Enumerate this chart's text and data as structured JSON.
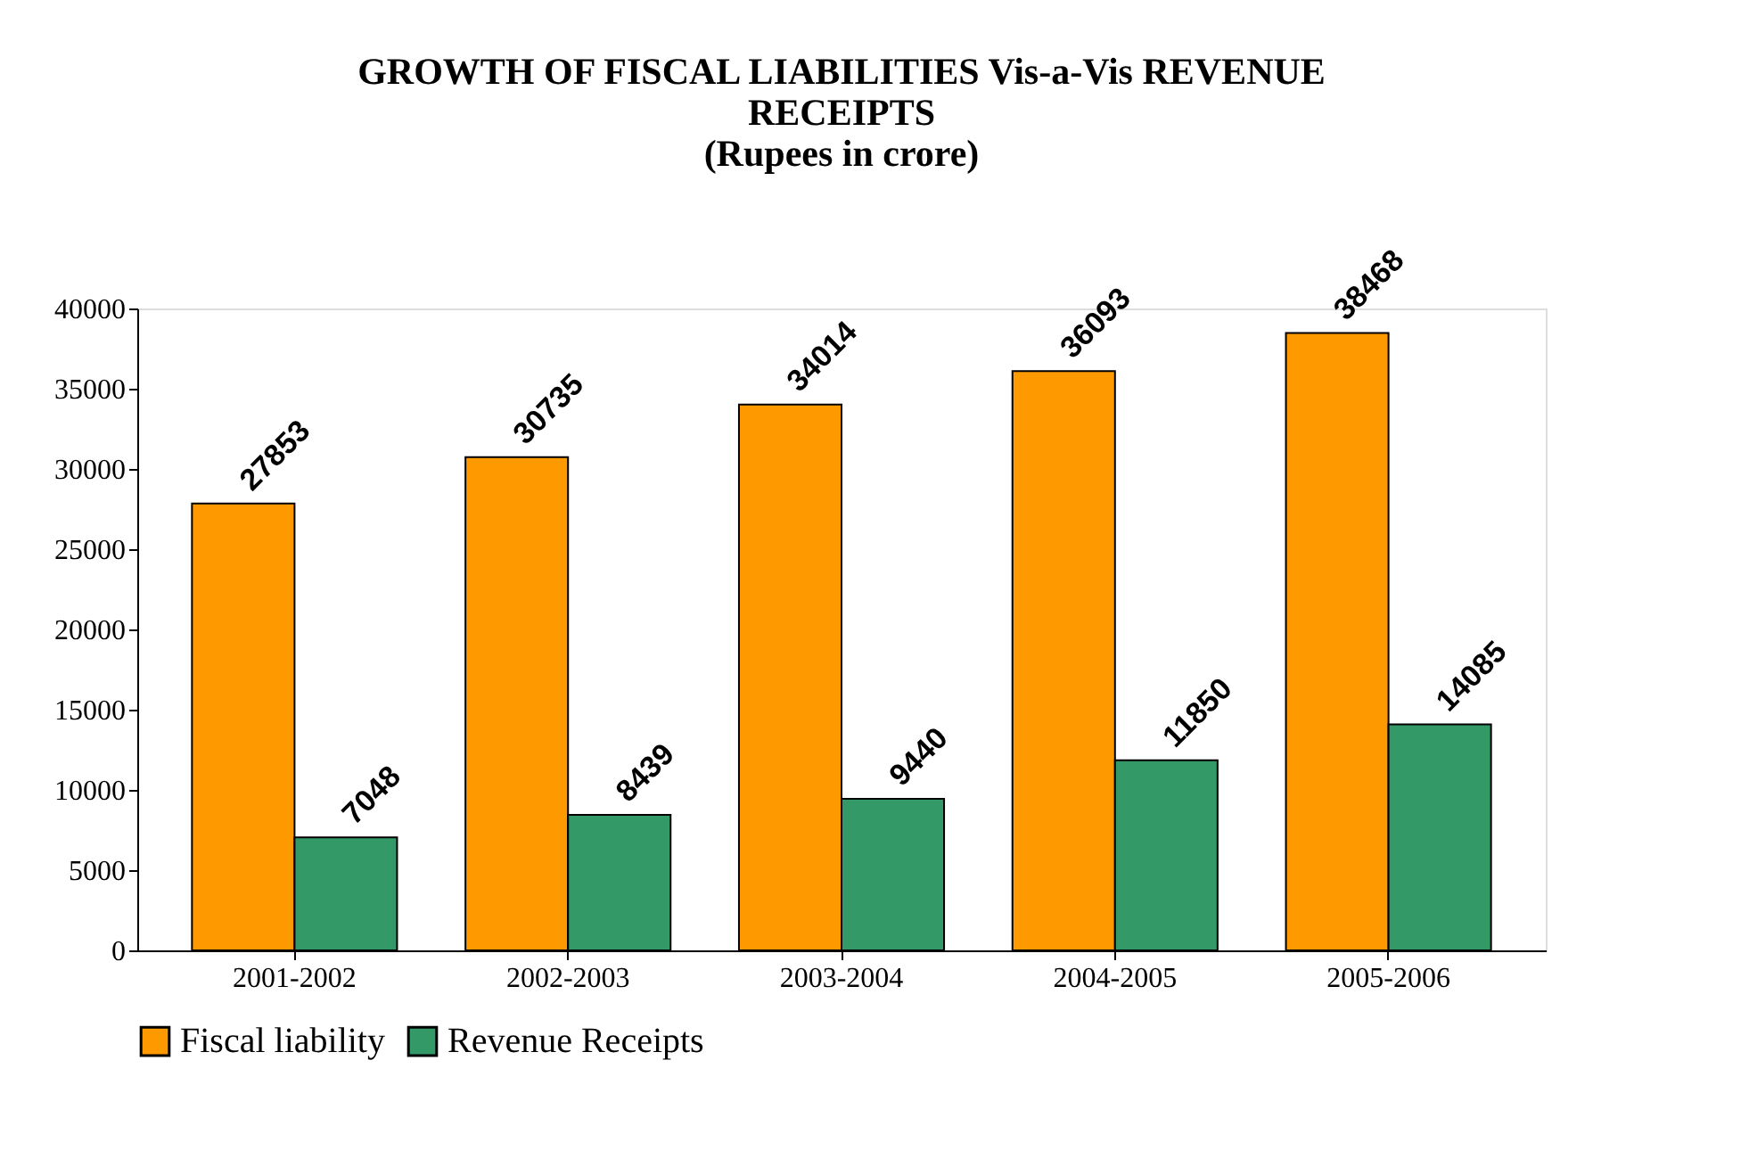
{
  "chart_data": {
    "type": "bar",
    "title": "GROWTH OF FISCAL LIABILITIES Vis-a-Vis REVENUE RECEIPTS",
    "subtitle": "(Rupees in crore)",
    "categories": [
      "2001-2002",
      "2002-2003",
      "2003-2004",
      "2004-2005",
      "2005-2006"
    ],
    "series": [
      {
        "name": "Fiscal liability",
        "color": "#ff9900",
        "values": [
          27853,
          30735,
          34014,
          36093,
          38468
        ]
      },
      {
        "name": "Revenue Receipts",
        "color": "#339966",
        "values": [
          7048,
          8439,
          9440,
          11850,
          14085
        ]
      }
    ],
    "ylim": [
      0,
      40000
    ],
    "yticks": [
      0,
      5000,
      10000,
      15000,
      20000,
      25000,
      30000,
      35000,
      40000
    ],
    "grid": false,
    "legend": "bottom",
    "data_labels": true
  }
}
